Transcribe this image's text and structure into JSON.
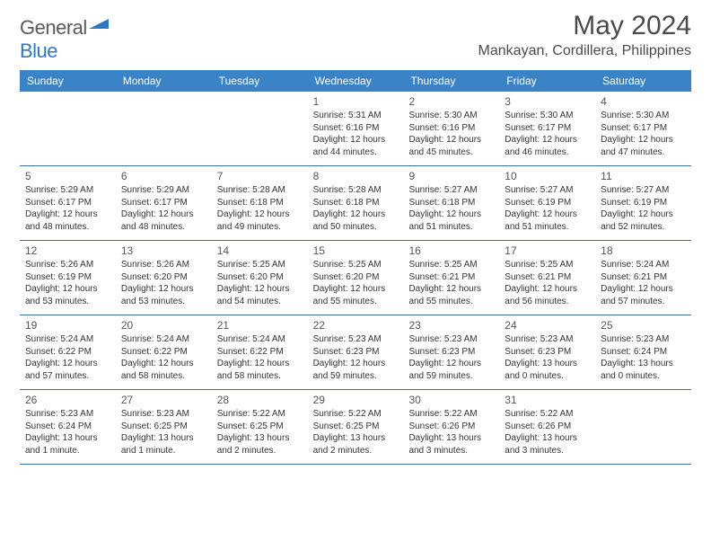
{
  "logo": {
    "text1": "General",
    "text2": "Blue"
  },
  "title": "May 2024",
  "location": "Mankayan, Cordillera, Philippines",
  "colors": {
    "header_bg": "#3b83c7",
    "header_text": "#ffffff",
    "rule": "#3b6fa8",
    "body_text": "#333333",
    "title_text": "#4a4a4a",
    "logo_gray": "#5a5a5a",
    "logo_blue": "#2f78c4",
    "background": "#ffffff"
  },
  "typography": {
    "title_fontsize": 30,
    "location_fontsize": 16,
    "dayheader_fontsize": 12,
    "daynum_fontsize": 12,
    "detail_fontsize": 10
  },
  "day_names": [
    "Sunday",
    "Monday",
    "Tuesday",
    "Wednesday",
    "Thursday",
    "Friday",
    "Saturday"
  ],
  "weeks": [
    [
      null,
      null,
      null,
      {
        "n": "1",
        "sr": "Sunrise: 5:31 AM",
        "ss": "Sunset: 6:16 PM",
        "d1": "Daylight: 12 hours",
        "d2": "and 44 minutes."
      },
      {
        "n": "2",
        "sr": "Sunrise: 5:30 AM",
        "ss": "Sunset: 6:16 PM",
        "d1": "Daylight: 12 hours",
        "d2": "and 45 minutes."
      },
      {
        "n": "3",
        "sr": "Sunrise: 5:30 AM",
        "ss": "Sunset: 6:17 PM",
        "d1": "Daylight: 12 hours",
        "d2": "and 46 minutes."
      },
      {
        "n": "4",
        "sr": "Sunrise: 5:30 AM",
        "ss": "Sunset: 6:17 PM",
        "d1": "Daylight: 12 hours",
        "d2": "and 47 minutes."
      }
    ],
    [
      {
        "n": "5",
        "sr": "Sunrise: 5:29 AM",
        "ss": "Sunset: 6:17 PM",
        "d1": "Daylight: 12 hours",
        "d2": "and 48 minutes."
      },
      {
        "n": "6",
        "sr": "Sunrise: 5:29 AM",
        "ss": "Sunset: 6:17 PM",
        "d1": "Daylight: 12 hours",
        "d2": "and 48 minutes."
      },
      {
        "n": "7",
        "sr": "Sunrise: 5:28 AM",
        "ss": "Sunset: 6:18 PM",
        "d1": "Daylight: 12 hours",
        "d2": "and 49 minutes."
      },
      {
        "n": "8",
        "sr": "Sunrise: 5:28 AM",
        "ss": "Sunset: 6:18 PM",
        "d1": "Daylight: 12 hours",
        "d2": "and 50 minutes."
      },
      {
        "n": "9",
        "sr": "Sunrise: 5:27 AM",
        "ss": "Sunset: 6:18 PM",
        "d1": "Daylight: 12 hours",
        "d2": "and 51 minutes."
      },
      {
        "n": "10",
        "sr": "Sunrise: 5:27 AM",
        "ss": "Sunset: 6:19 PM",
        "d1": "Daylight: 12 hours",
        "d2": "and 51 minutes."
      },
      {
        "n": "11",
        "sr": "Sunrise: 5:27 AM",
        "ss": "Sunset: 6:19 PM",
        "d1": "Daylight: 12 hours",
        "d2": "and 52 minutes."
      }
    ],
    [
      {
        "n": "12",
        "sr": "Sunrise: 5:26 AM",
        "ss": "Sunset: 6:19 PM",
        "d1": "Daylight: 12 hours",
        "d2": "and 53 minutes."
      },
      {
        "n": "13",
        "sr": "Sunrise: 5:26 AM",
        "ss": "Sunset: 6:20 PM",
        "d1": "Daylight: 12 hours",
        "d2": "and 53 minutes."
      },
      {
        "n": "14",
        "sr": "Sunrise: 5:25 AM",
        "ss": "Sunset: 6:20 PM",
        "d1": "Daylight: 12 hours",
        "d2": "and 54 minutes."
      },
      {
        "n": "15",
        "sr": "Sunrise: 5:25 AM",
        "ss": "Sunset: 6:20 PM",
        "d1": "Daylight: 12 hours",
        "d2": "and 55 minutes."
      },
      {
        "n": "16",
        "sr": "Sunrise: 5:25 AM",
        "ss": "Sunset: 6:21 PM",
        "d1": "Daylight: 12 hours",
        "d2": "and 55 minutes."
      },
      {
        "n": "17",
        "sr": "Sunrise: 5:25 AM",
        "ss": "Sunset: 6:21 PM",
        "d1": "Daylight: 12 hours",
        "d2": "and 56 minutes."
      },
      {
        "n": "18",
        "sr": "Sunrise: 5:24 AM",
        "ss": "Sunset: 6:21 PM",
        "d1": "Daylight: 12 hours",
        "d2": "and 57 minutes."
      }
    ],
    [
      {
        "n": "19",
        "sr": "Sunrise: 5:24 AM",
        "ss": "Sunset: 6:22 PM",
        "d1": "Daylight: 12 hours",
        "d2": "and 57 minutes."
      },
      {
        "n": "20",
        "sr": "Sunrise: 5:24 AM",
        "ss": "Sunset: 6:22 PM",
        "d1": "Daylight: 12 hours",
        "d2": "and 58 minutes."
      },
      {
        "n": "21",
        "sr": "Sunrise: 5:24 AM",
        "ss": "Sunset: 6:22 PM",
        "d1": "Daylight: 12 hours",
        "d2": "and 58 minutes."
      },
      {
        "n": "22",
        "sr": "Sunrise: 5:23 AM",
        "ss": "Sunset: 6:23 PM",
        "d1": "Daylight: 12 hours",
        "d2": "and 59 minutes."
      },
      {
        "n": "23",
        "sr": "Sunrise: 5:23 AM",
        "ss": "Sunset: 6:23 PM",
        "d1": "Daylight: 12 hours",
        "d2": "and 59 minutes."
      },
      {
        "n": "24",
        "sr": "Sunrise: 5:23 AM",
        "ss": "Sunset: 6:23 PM",
        "d1": "Daylight: 13 hours",
        "d2": "and 0 minutes."
      },
      {
        "n": "25",
        "sr": "Sunrise: 5:23 AM",
        "ss": "Sunset: 6:24 PM",
        "d1": "Daylight: 13 hours",
        "d2": "and 0 minutes."
      }
    ],
    [
      {
        "n": "26",
        "sr": "Sunrise: 5:23 AM",
        "ss": "Sunset: 6:24 PM",
        "d1": "Daylight: 13 hours",
        "d2": "and 1 minute."
      },
      {
        "n": "27",
        "sr": "Sunrise: 5:23 AM",
        "ss": "Sunset: 6:25 PM",
        "d1": "Daylight: 13 hours",
        "d2": "and 1 minute."
      },
      {
        "n": "28",
        "sr": "Sunrise: 5:22 AM",
        "ss": "Sunset: 6:25 PM",
        "d1": "Daylight: 13 hours",
        "d2": "and 2 minutes."
      },
      {
        "n": "29",
        "sr": "Sunrise: 5:22 AM",
        "ss": "Sunset: 6:25 PM",
        "d1": "Daylight: 13 hours",
        "d2": "and 2 minutes."
      },
      {
        "n": "30",
        "sr": "Sunrise: 5:22 AM",
        "ss": "Sunset: 6:26 PM",
        "d1": "Daylight: 13 hours",
        "d2": "and 3 minutes."
      },
      {
        "n": "31",
        "sr": "Sunrise: 5:22 AM",
        "ss": "Sunset: 6:26 PM",
        "d1": "Daylight: 13 hours",
        "d2": "and 3 minutes."
      },
      null
    ]
  ]
}
